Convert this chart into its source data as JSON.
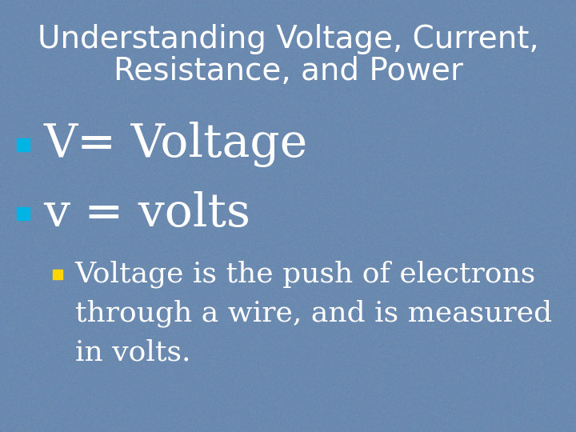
{
  "bg_color": "#6b8ab0",
  "title_line1": "Understanding Voltage, Current,",
  "title_line2": "Resistance, and Power",
  "title_color": "#ffffff",
  "title_fontsize": 28,
  "bullet1_text": "V= Voltage",
  "bullet1_color": "#ffffff",
  "bullet1_marker_color": "#00b4e6",
  "bullet1_fontsize": 42,
  "bullet2_text": "v = volts",
  "bullet2_color": "#ffffff",
  "bullet2_marker_color": "#00b4e6",
  "bullet2_fontsize": 42,
  "bullet3_line1": "Voltage is the push of electrons",
  "bullet3_line2": "through a wire, and is measured",
  "bullet3_line3": "in volts.",
  "bullet3_color": "#ffffff",
  "bullet3_marker_color": "#ffd700",
  "bullet3_fontsize": 26,
  "marker_size": 11,
  "sub_marker_size": 9
}
